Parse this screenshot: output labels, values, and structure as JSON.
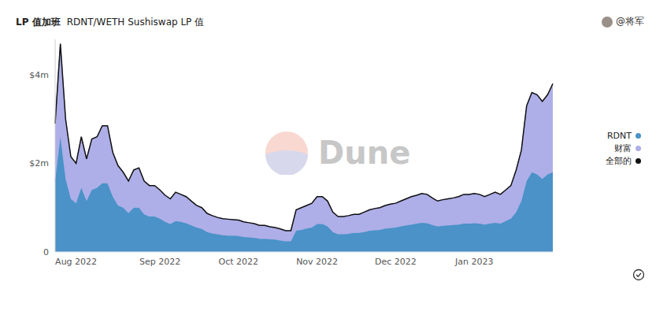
{
  "chart_data": {
    "type": "area",
    "title": "LP 值加班",
    "subtitle": "RDNT/WETH Sushiswap LP 值",
    "annotations": [
      "@将军",
      "Dune"
    ],
    "stacked": true,
    "grid": false,
    "legend": "right",
    "categories": [
      null,
      null,
      null,
      null,
      "Aug 2022",
      null,
      null,
      null,
      null,
      null,
      null,
      null,
      null,
      null,
      null,
      null,
      null,
      null,
      null,
      null,
      "Sep 2022",
      null,
      null,
      null,
      null,
      null,
      null,
      null,
      null,
      null,
      null,
      null,
      null,
      null,
      null,
      "Oct 2022",
      null,
      null,
      null,
      null,
      null,
      null,
      null,
      null,
      null,
      null,
      null,
      null,
      null,
      null,
      "Nov 2022",
      null,
      null,
      null,
      null,
      null,
      null,
      null,
      null,
      null,
      null,
      null,
      null,
      null,
      null,
      "Dec 2022",
      null,
      null,
      null,
      null,
      null,
      null,
      null,
      null,
      null,
      null,
      null,
      null,
      null,
      null,
      "Jan 2023",
      null,
      null,
      null,
      null,
      null,
      null,
      null,
      null,
      null,
      null,
      null,
      null,
      null,
      null,
      null
    ],
    "ylim": [
      0,
      4.8
    ],
    "yticks": [
      0,
      {
        "value": 2,
        "label": "$2m"
      },
      {
        "value": 4,
        "label": "$4m"
      }
    ],
    "series": [
      {
        "name": "RDNT",
        "color": "#4a92c7",
        "type": "area",
        "values": [
          1.6,
          2.6,
          1.65,
          1.2,
          1.1,
          1.45,
          1.15,
          1.4,
          1.45,
          1.55,
          1.55,
          1.25,
          1.05,
          1.0,
          0.88,
          1.0,
          1.0,
          0.85,
          0.8,
          0.8,
          0.75,
          0.68,
          0.63,
          0.7,
          0.68,
          0.65,
          0.6,
          0.55,
          0.52,
          0.45,
          0.42,
          0.4,
          0.38,
          0.37,
          0.37,
          0.36,
          0.34,
          0.33,
          0.32,
          0.3,
          0.3,
          0.29,
          0.28,
          0.26,
          0.24,
          0.24,
          0.48,
          0.5,
          0.53,
          0.55,
          0.63,
          0.63,
          0.58,
          0.45,
          0.4,
          0.4,
          0.41,
          0.43,
          0.43,
          0.45,
          0.48,
          0.49,
          0.5,
          0.53,
          0.54,
          0.55,
          0.58,
          0.6,
          0.62,
          0.64,
          0.66,
          0.65,
          0.61,
          0.58,
          0.59,
          0.6,
          0.61,
          0.62,
          0.64,
          0.64,
          0.65,
          0.64,
          0.62,
          0.64,
          0.66,
          0.64,
          0.7,
          0.75,
          0.9,
          1.15,
          1.6,
          1.8,
          1.75,
          1.65,
          1.75,
          1.8
        ]
      },
      {
        "name": "财富",
        "color": "#aeaee8",
        "type": "area",
        "values": [
          1.3,
          2.1,
          1.35,
          0.95,
          0.9,
          1.15,
          0.95,
          1.15,
          1.15,
          1.3,
          1.3,
          1.0,
          0.9,
          0.8,
          0.72,
          0.85,
          0.9,
          0.75,
          0.7,
          0.7,
          0.65,
          0.6,
          0.57,
          0.65,
          0.62,
          0.6,
          0.55,
          0.5,
          0.48,
          0.42,
          0.4,
          0.38,
          0.37,
          0.37,
          0.36,
          0.36,
          0.34,
          0.33,
          0.32,
          0.3,
          0.3,
          0.28,
          0.27,
          0.26,
          0.24,
          0.24,
          0.47,
          0.5,
          0.52,
          0.55,
          0.62,
          0.62,
          0.57,
          0.45,
          0.4,
          0.4,
          0.41,
          0.42,
          0.42,
          0.45,
          0.47,
          0.49,
          0.5,
          0.52,
          0.54,
          0.55,
          0.57,
          0.6,
          0.63,
          0.64,
          0.66,
          0.65,
          0.61,
          0.57,
          0.59,
          0.6,
          0.61,
          0.63,
          0.66,
          0.66,
          0.67,
          0.66,
          0.63,
          0.66,
          0.69,
          0.66,
          0.7,
          0.75,
          0.95,
          1.15,
          1.7,
          1.8,
          1.8,
          1.75,
          1.8,
          2.0
        ]
      },
      {
        "name": "全部的",
        "color": "#111111",
        "type": "line",
        "values": [
          2.9,
          4.7,
          3.0,
          2.15,
          2.0,
          2.6,
          2.1,
          2.55,
          2.6,
          2.85,
          2.85,
          2.25,
          1.95,
          1.8,
          1.6,
          1.85,
          1.9,
          1.6,
          1.5,
          1.5,
          1.4,
          1.28,
          1.2,
          1.35,
          1.3,
          1.25,
          1.15,
          1.05,
          1.0,
          0.87,
          0.82,
          0.78,
          0.75,
          0.74,
          0.73,
          0.72,
          0.68,
          0.66,
          0.64,
          0.6,
          0.6,
          0.57,
          0.55,
          0.52,
          0.48,
          0.48,
          0.95,
          1.0,
          1.05,
          1.1,
          1.25,
          1.25,
          1.15,
          0.9,
          0.8,
          0.8,
          0.82,
          0.85,
          0.85,
          0.9,
          0.95,
          0.98,
          1.0,
          1.05,
          1.08,
          1.1,
          1.15,
          1.2,
          1.25,
          1.28,
          1.32,
          1.3,
          1.22,
          1.15,
          1.18,
          1.2,
          1.22,
          1.25,
          1.3,
          1.3,
          1.32,
          1.3,
          1.25,
          1.3,
          1.35,
          1.3,
          1.4,
          1.5,
          1.85,
          2.3,
          3.3,
          3.6,
          3.55,
          3.4,
          3.55,
          3.8
        ]
      }
    ]
  }
}
